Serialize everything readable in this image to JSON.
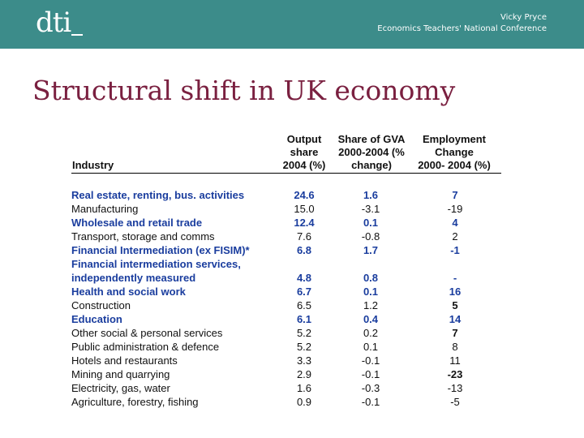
{
  "header": {
    "logo_text": "dti",
    "presenter": "Vicky Pryce",
    "event": "Economics Teachers' National Conference",
    "background_color": "#3c8c8a"
  },
  "slide_title": "Structural shift in UK economy",
  "table": {
    "headers": {
      "industry": "Industry",
      "output": [
        "Output",
        "share",
        "2004 (%)"
      ],
      "gva": [
        "Share of GVA",
        "2000-2004 (%",
        "change)"
      ],
      "employment": [
        "Employment",
        "Change",
        "2000- 2004 (%)"
      ]
    },
    "rows": [
      {
        "name": "Real estate, renting, bus. activities",
        "output": "24.6",
        "gva": "1.6",
        "emp": "7",
        "highlight": true
      },
      {
        "name": "Manufacturing",
        "output": "15.0",
        "gva": "-3.1",
        "emp": "-19",
        "highlight": false
      },
      {
        "name": "Wholesale and retail trade",
        "output": "12.4",
        "gva": "0.1",
        "emp": "4",
        "highlight": true
      },
      {
        "name": "Transport, storage and comms",
        "output": "7.6",
        "gva": "-0.8",
        "emp": "2",
        "highlight": false
      },
      {
        "name": "Financial Intermediation (ex FISIM)*",
        "output": "6.8",
        "gva": "1.7",
        "emp": "-1",
        "highlight": true
      },
      {
        "name": "Financial intermediation services,",
        "output": "",
        "gva": "",
        "emp": "",
        "highlight": true
      },
      {
        "name": "independently measured",
        "output": "4.8",
        "gva": "0.8",
        "emp": "-",
        "highlight": true
      },
      {
        "name": "Health and social work",
        "output": "6.7",
        "gva": "0.1",
        "emp": "16",
        "highlight": true
      },
      {
        "name": "Construction",
        "output": "6.5",
        "gva": "1.2",
        "emp": "5",
        "highlight": false,
        "emp_bold": true
      },
      {
        "name": "Education",
        "output": "6.1",
        "gva": "0.4",
        "emp": "14",
        "highlight": true
      },
      {
        "name": "Other social & personal services",
        "output": "5.2",
        "gva": "0.2",
        "emp": "7",
        "highlight": false,
        "emp_bold": true
      },
      {
        "name": "Public administration & defence",
        "output": "5.2",
        "gva": "0.1",
        "emp": "8",
        "highlight": false
      },
      {
        "name": "Hotels and restaurants",
        "output": "3.3",
        "gva": "-0.1",
        "emp": "11",
        "highlight": false
      },
      {
        "name": "Mining and quarrying",
        "output": "2.9",
        "gva": "-0.1",
        "emp": "-23",
        "highlight": false,
        "emp_bold": true
      },
      {
        "name": "Electricity, gas, water",
        "output": "1.6",
        "gva": "-0.3",
        "emp": "-13",
        "highlight": false
      },
      {
        "name": "Agriculture, forestry, fishing",
        "output": "0.9",
        "gva": "-0.1",
        "emp": "-5",
        "highlight": false
      }
    ]
  }
}
